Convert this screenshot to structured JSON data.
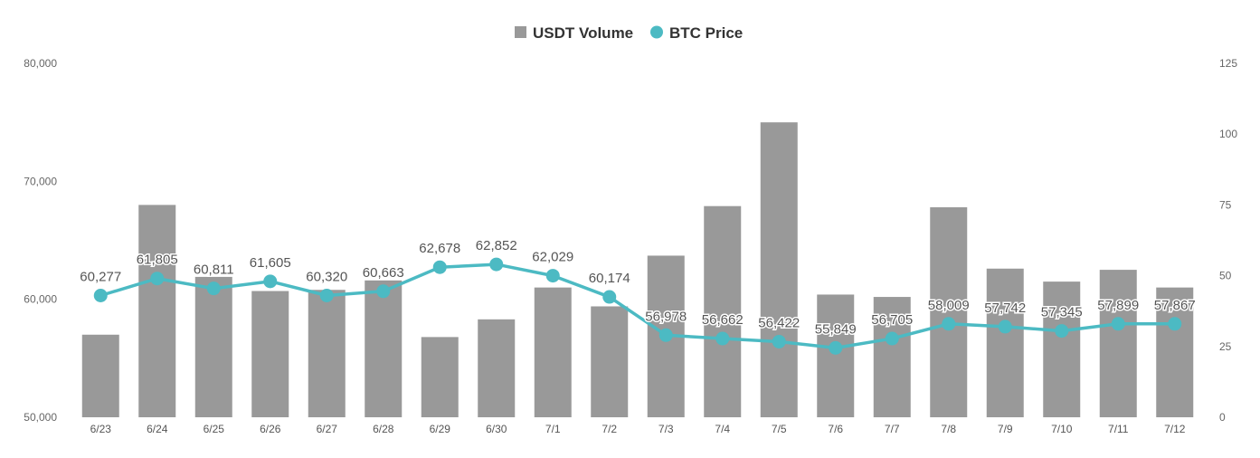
{
  "chart_data": {
    "type": "bar",
    "title": "",
    "xlabel": "",
    "ylabel": "",
    "categories": [
      "6/23",
      "6/24",
      "6/25",
      "6/26",
      "6/27",
      "6/28",
      "6/29",
      "6/30",
      "7/1",
      "7/2",
      "7/3",
      "7/4",
      "7/5",
      "7/6",
      "7/7",
      "7/8",
      "7/9",
      "7/10",
      "7/11",
      "7/12"
    ],
    "legend": {
      "placement": "top-center"
    },
    "grid": false,
    "left_axis": {
      "ylim": [
        50000,
        80000
      ],
      "ticks": [
        "50,000",
        "60,000",
        "70,000",
        "80,000"
      ],
      "tick_values": [
        50000,
        60000,
        70000,
        80000
      ]
    },
    "right_axis": {
      "ylim": [
        0,
        125
      ],
      "ticks": [
        "0",
        "25",
        "50",
        "75",
        "100",
        "125"
      ],
      "tick_values": [
        0,
        25,
        50,
        75,
        100,
        125
      ]
    },
    "series": [
      {
        "name": "USDT Volume",
        "type": "bar",
        "axis": "left",
        "color": "#999999",
        "values": [
          57000,
          68000,
          61900,
          60700,
          60800,
          61600,
          56800,
          58300,
          61000,
          59400,
          63700,
          67900,
          75000,
          60400,
          60200,
          67800,
          62600,
          61500,
          62500,
          61000
        ]
      },
      {
        "name": "BTC Price",
        "type": "line",
        "axis": "right",
        "color": "#4cbac3",
        "values": [
          43,
          49,
          45.5,
          48,
          43,
          44.5,
          53,
          54,
          50,
          42.5,
          29,
          27.8,
          26.7,
          24.5,
          27.8,
          33,
          32,
          30.5,
          33,
          33
        ],
        "labels": [
          "60,277",
          "61,805",
          "60,811",
          "61,605",
          "60,320",
          "60,663",
          "62,678",
          "62,852",
          "62,029",
          "60,174",
          "56,978",
          "56,662",
          "56,422",
          "55,849",
          "56,705",
          "58,009",
          "57,742",
          "57,345",
          "57,899",
          "57,867"
        ]
      }
    ]
  }
}
